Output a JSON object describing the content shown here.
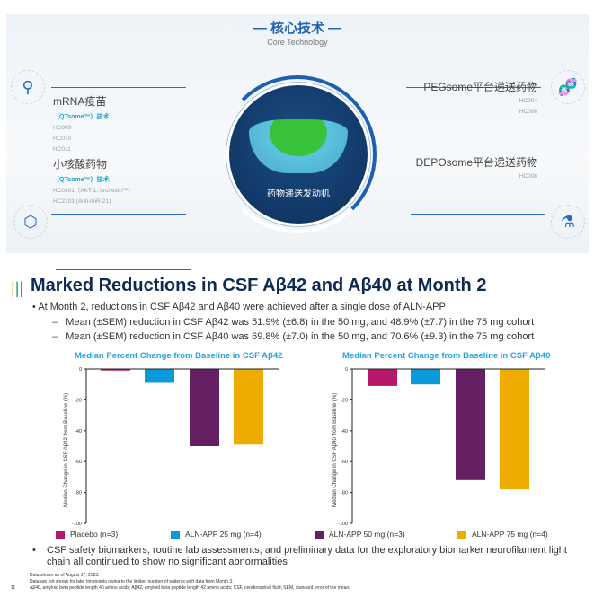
{
  "hero": {
    "title": "— 核心技术 —",
    "subtitle": "Core Technology",
    "center_label": "药物递送发动机",
    "left": [
      {
        "heading": "mRNA疫苗",
        "tech": "（QTsome™）技术",
        "codes": [
          "HC009",
          "HC010",
          "HC011"
        ],
        "icon": "molecule-icon"
      },
      {
        "heading": "小核酸药物",
        "tech": "（QTsome™）技术",
        "codes": [
          "HC0301（AKT-1, Archexin™）",
          "HC2101 (Anti-miR-21)"
        ],
        "icon": "hexagon-ring-icon"
      }
    ],
    "right": [
      {
        "heading": "PEGsome平台递送药物",
        "codes": [
          "HC004",
          "HC006"
        ],
        "icon": "dna-icon"
      },
      {
        "heading": "DEPOsome平台递送药物",
        "codes": [
          "HC008"
        ],
        "icon": "flask-icon"
      }
    ]
  },
  "slide": {
    "title": "Marked Reductions in CSF Aβ42 and Aβ40 at Month 2",
    "bullet": "At Month 2, reductions in CSF Aβ42 and Aβ40 were achieved after a single dose of ALN-APP",
    "sub_bullets": [
      "Mean (±SEM) reduction in CSF Aβ42 was 51.9% (±6.8) in the 50 mg, and 48.9% (±7.7) in the 75 mg cohort",
      "Mean (±SEM) reduction in CSF Aβ40 was 69.8% (±7.0) in the 50 mg, and 70.6% (±9.3) in the 75 mg cohort"
    ],
    "bottom_bullet": "CSF safety biomarkers, routine lab assessments, and preliminary data for the exploratory biomarker neurofilament light chain all continued to show no significant abnormalities",
    "footnotes": [
      "Data shown as of August 17, 2023.",
      "Data are not shown for later timepoints owing to the limited number of patients with data from Month 3.",
      "Aβ40, amyloid beta peptide length 40 amino acids; Aβ42, amyloid beta peptide length 42 amino acids; CSF, cerebrospinal fluid; SEM, standard error of the mean."
    ],
    "page_number": "11"
  },
  "legend": [
    {
      "label": "Placebo (n=3)",
      "color": "#b5186b"
    },
    {
      "label": "ALN-APP 25 mg (n=4)",
      "color": "#0a9ad9"
    },
    {
      "label": "ALN-APP 50 mg (n=3)",
      "color": "#651f63"
    },
    {
      "label": "ALN-APP 75 mg (n=4)",
      "color": "#eeab00"
    }
  ],
  "chart_data": [
    {
      "type": "bar",
      "title": "Median Percent Change from Baseline in CSF Aβ42",
      "ylabel": "Median Change in CSF Aβ42 from Baseline (%)",
      "categories": [
        "Placebo (n=3)",
        "ALN-APP 25 mg (n=4)",
        "ALN-APP 50 mg (n=3)",
        "ALN-APP 75 mg (n=4)"
      ],
      "values": [
        -1,
        -9,
        -50,
        -49
      ],
      "ylim": [
        -100,
        0
      ],
      "yticks": [
        0,
        -20,
        -40,
        -60,
        -80,
        -100
      ],
      "grid": false
    },
    {
      "type": "bar",
      "title": "Median Percent Change from Baseline in CSF Aβ40",
      "ylabel": "Median Change in CSF Aβ40 from Baseline (%)",
      "categories": [
        "Placebo (n=3)",
        "ALN-APP 25 mg (n=4)",
        "ALN-APP 50 mg (n=3)",
        "ALN-APP 75 mg (n=4)"
      ],
      "values": [
        -11,
        -10,
        -72,
        -78
      ],
      "ylim": [
        -100,
        0
      ],
      "yticks": [
        0,
        -20,
        -40,
        -60,
        -80,
        -100
      ],
      "grid": false
    }
  ]
}
